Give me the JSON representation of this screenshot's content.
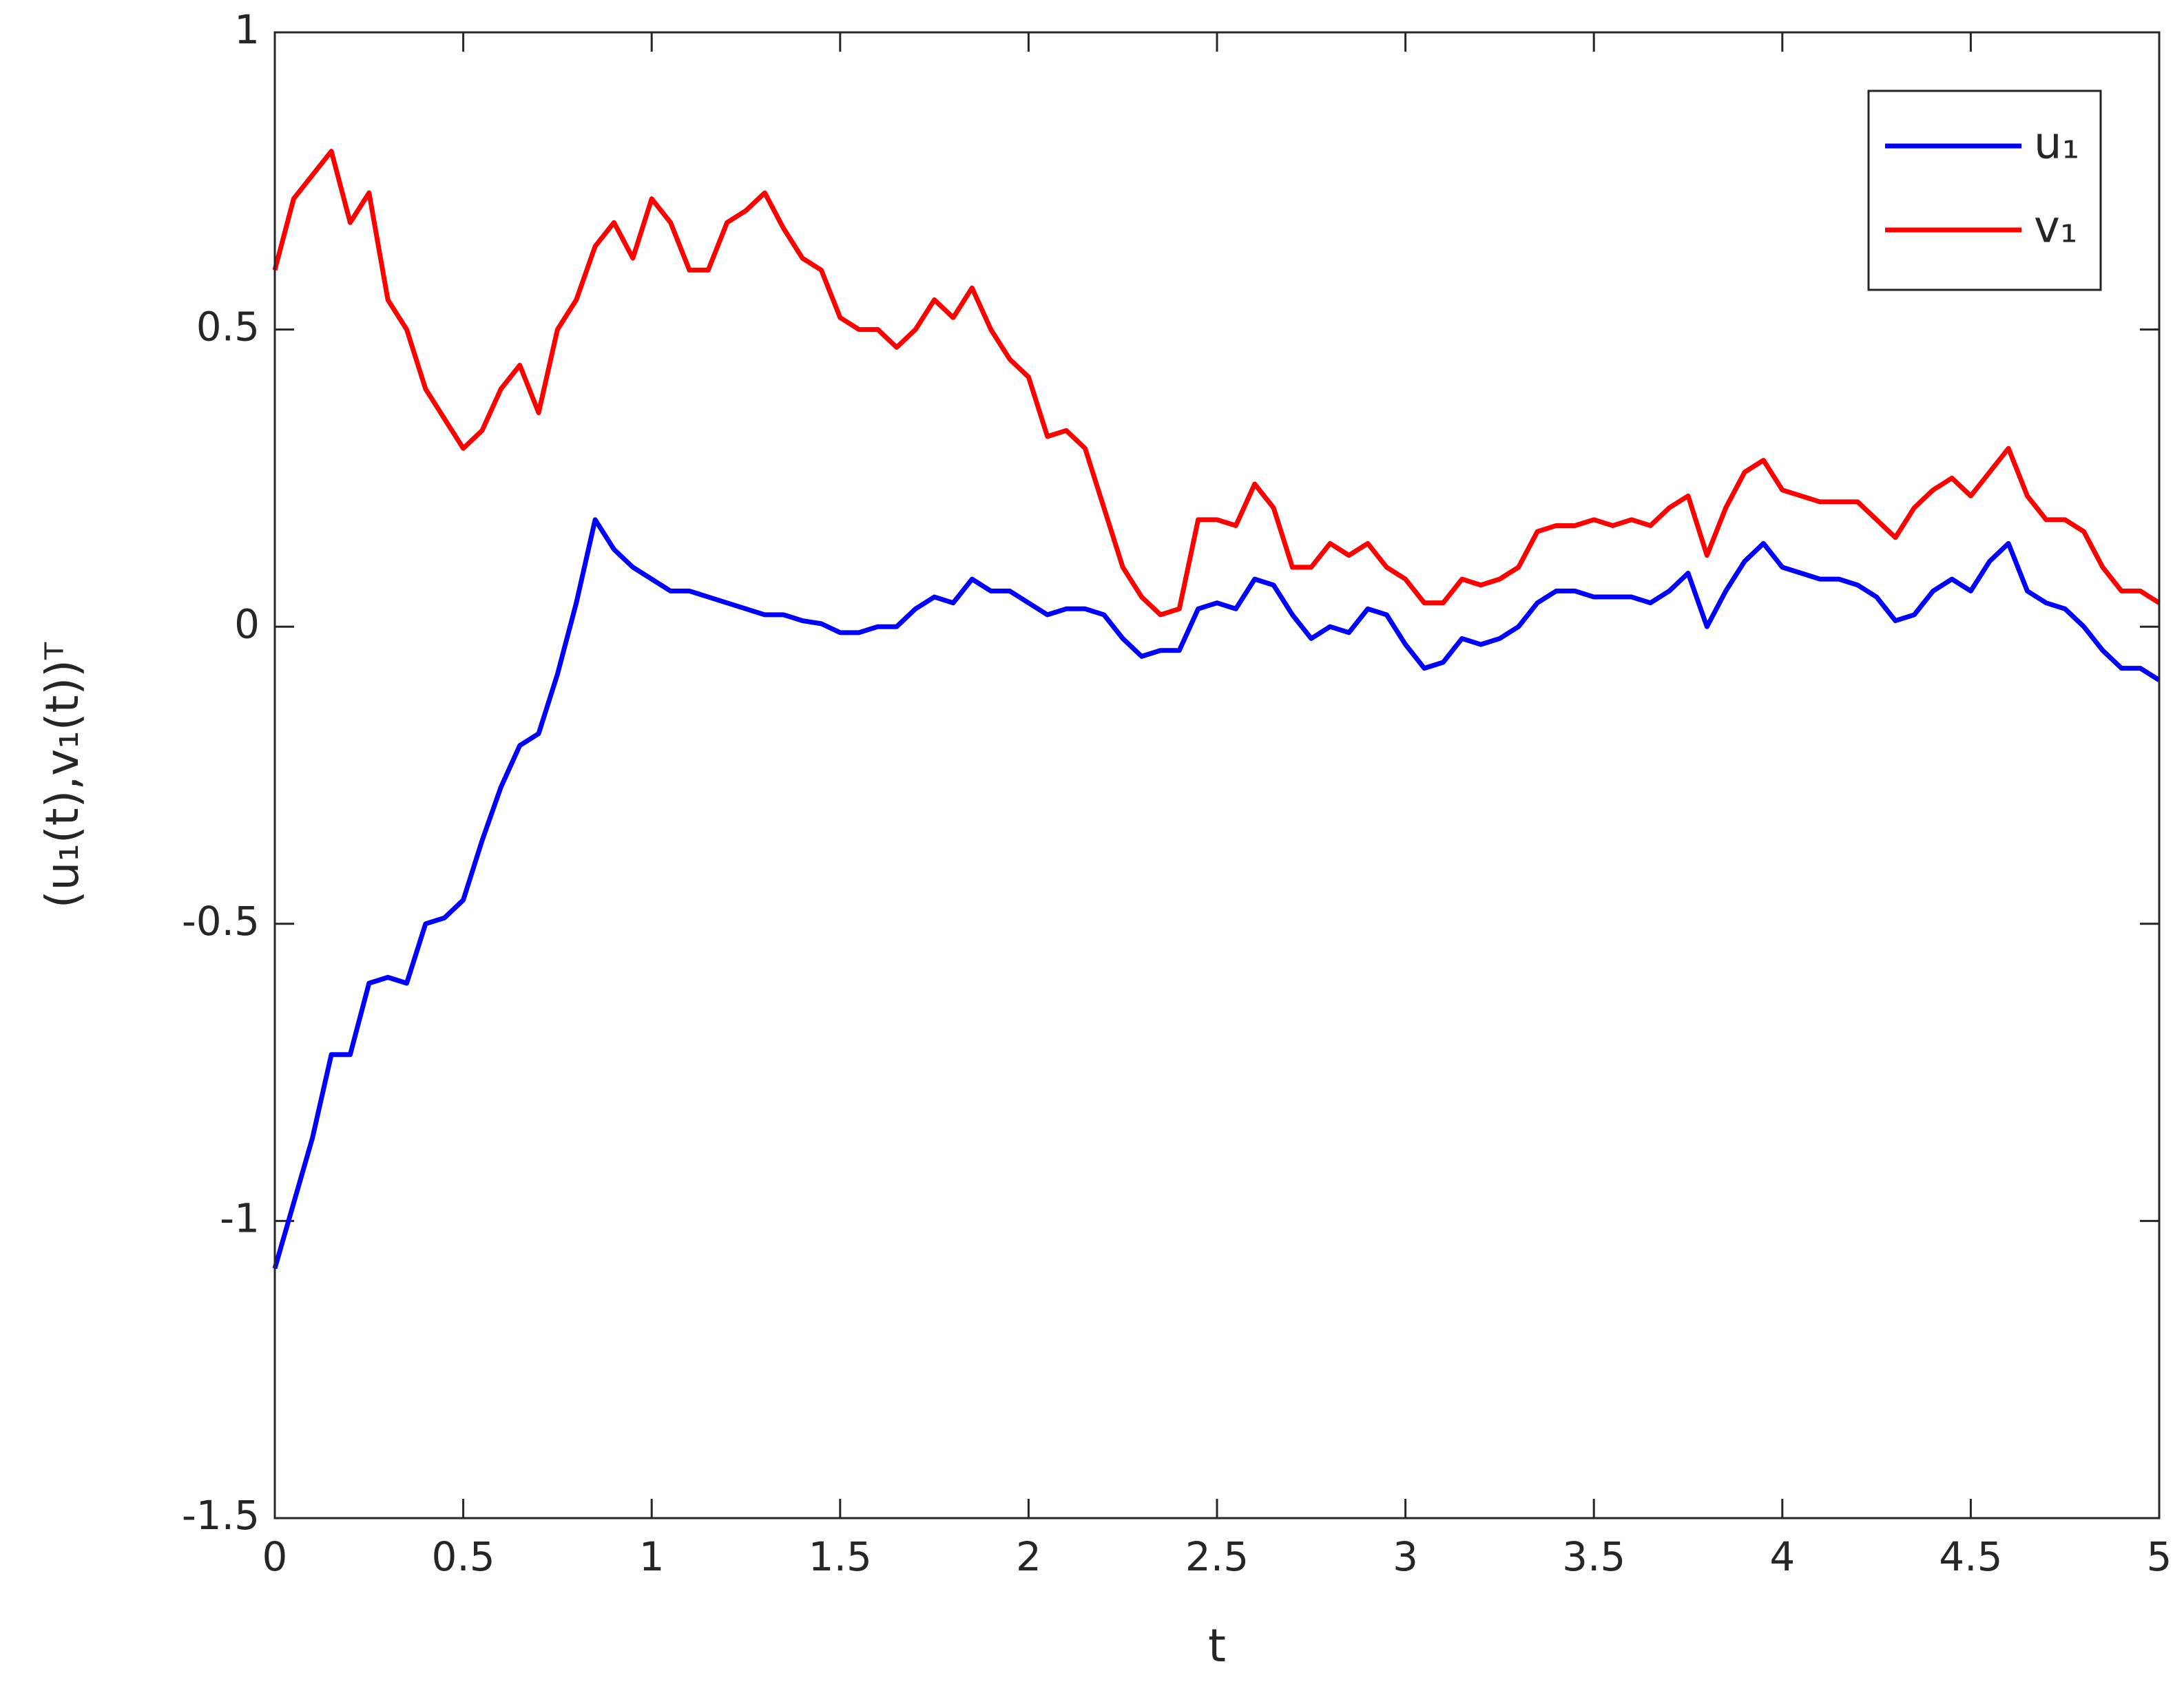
{
  "chart_data": {
    "type": "line",
    "xlabel": "t",
    "ylabel": "(u₁(t),v₁(t))ᵀ",
    "x": [
      0,
      0.05,
      0.1,
      0.15,
      0.2,
      0.25,
      0.3,
      0.35,
      0.4,
      0.45,
      0.5,
      0.55,
      0.6,
      0.65,
      0.7,
      0.75,
      0.8,
      0.85,
      0.9,
      0.95,
      1,
      1.05,
      1.1,
      1.15,
      1.2,
      1.25,
      1.3,
      1.35,
      1.4,
      1.45,
      1.5,
      1.55,
      1.6,
      1.65,
      1.7,
      1.75,
      1.8,
      1.85,
      1.9,
      1.95,
      2,
      2.05,
      2.1,
      2.15,
      2.2,
      2.25,
      2.3,
      2.35,
      2.4,
      2.45,
      2.5,
      2.55,
      2.6,
      2.65,
      2.7,
      2.75,
      2.8,
      2.85,
      2.9,
      2.95,
      3,
      3.05,
      3.1,
      3.15,
      3.2,
      3.25,
      3.3,
      3.35,
      3.4,
      3.45,
      3.5,
      3.55,
      3.6,
      3.65,
      3.7,
      3.75,
      3.8,
      3.85,
      3.9,
      3.95,
      4,
      4.05,
      4.1,
      4.15,
      4.2,
      4.25,
      4.3,
      4.35,
      4.4,
      4.45,
      4.5,
      4.55,
      4.6,
      4.65,
      4.7,
      4.75,
      4.8,
      4.85,
      4.9,
      4.95,
      5
    ],
    "series": [
      {
        "name": "u₁",
        "color": "#0000ff",
        "values": [
          -1.08,
          -0.97,
          -0.86,
          -0.72,
          -0.72,
          -0.6,
          -0.59,
          -0.6,
          -0.5,
          -0.49,
          -0.46,
          -0.36,
          -0.27,
          -0.2,
          -0.18,
          -0.08,
          0.04,
          0.18,
          0.13,
          0.1,
          0.08,
          0.06,
          0.06,
          0.05,
          0.04,
          0.03,
          0.02,
          0.02,
          0.01,
          0.005,
          -0.01,
          -0.01,
          0,
          0,
          0.03,
          0.05,
          0.04,
          0.08,
          0.06,
          0.06,
          0.04,
          0.02,
          0.03,
          0.03,
          0.02,
          -0.02,
          -0.05,
          -0.04,
          -0.04,
          0.03,
          0.04,
          0.03,
          0.08,
          0.07,
          0.02,
          -0.02,
          0,
          -0.01,
          0.03,
          0.02,
          -0.03,
          -0.07,
          -0.06,
          -0.02,
          -0.03,
          -0.02,
          0,
          0.04,
          0.06,
          0.06,
          0.05,
          0.05,
          0.05,
          0.04,
          0.06,
          0.09,
          0,
          0.06,
          0.11,
          0.14,
          0.1,
          0.09,
          0.08,
          0.08,
          0.07,
          0.05,
          0.01,
          0.02,
          0.06,
          0.08,
          0.06,
          0.11,
          0.14,
          0.06,
          0.04,
          0.03,
          0,
          -0.04,
          -0.07,
          -0.07,
          -0.09
        ]
      },
      {
        "name": "v₁",
        "color": "#ff0000",
        "values": [
          0.6,
          0.72,
          0.76,
          0.8,
          0.68,
          0.73,
          0.55,
          0.5,
          0.4,
          0.35,
          0.3,
          0.33,
          0.4,
          0.44,
          0.36,
          0.5,
          0.55,
          0.64,
          0.68,
          0.62,
          0.72,
          0.68,
          0.6,
          0.6,
          0.68,
          0.7,
          0.73,
          0.67,
          0.62,
          0.6,
          0.52,
          0.5,
          0.5,
          0.47,
          0.5,
          0.55,
          0.52,
          0.57,
          0.5,
          0.45,
          0.42,
          0.32,
          0.33,
          0.3,
          0.2,
          0.1,
          0.05,
          0.02,
          0.03,
          0.18,
          0.18,
          0.17,
          0.24,
          0.2,
          0.1,
          0.1,
          0.14,
          0.12,
          0.14,
          0.1,
          0.08,
          0.04,
          0.04,
          0.08,
          0.07,
          0.08,
          0.1,
          0.16,
          0.17,
          0.17,
          0.18,
          0.17,
          0.18,
          0.17,
          0.2,
          0.22,
          0.12,
          0.2,
          0.26,
          0.28,
          0.23,
          0.22,
          0.21,
          0.21,
          0.21,
          0.18,
          0.15,
          0.2,
          0.23,
          0.25,
          0.22,
          0.26,
          0.3,
          0.22,
          0.18,
          0.18,
          0.16,
          0.1,
          0.06,
          0.06,
          0.04
        ]
      }
    ],
    "xlim": [
      0,
      5
    ],
    "xticks": [
      0,
      0.5,
      1,
      1.5,
      2,
      2.5,
      3,
      3.5,
      4,
      4.5,
      5
    ],
    "ylim": [
      -1.5,
      1
    ],
    "yticks": [
      -1.5,
      -1,
      -0.5,
      0,
      0.5,
      1
    ],
    "legend": "upper right"
  }
}
